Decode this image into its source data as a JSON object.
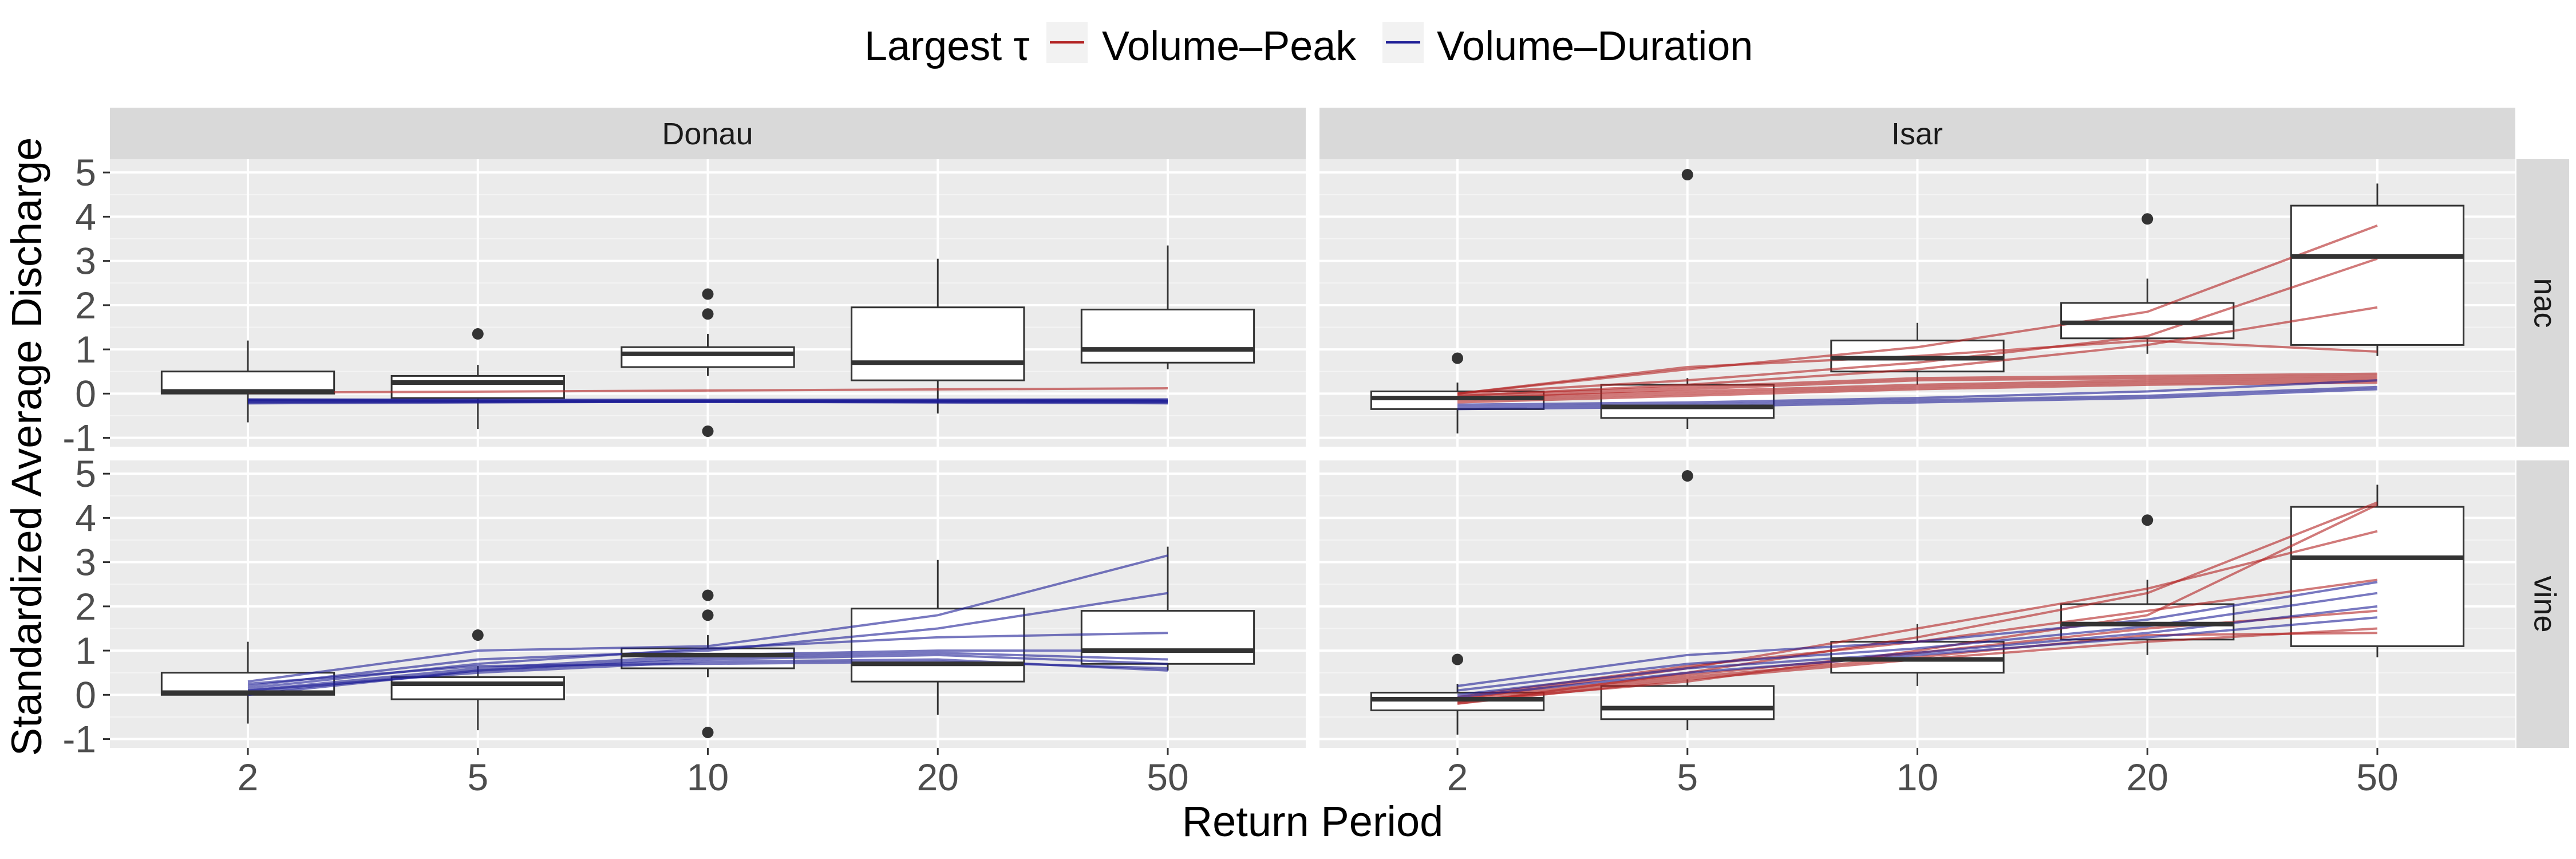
{
  "colors": {
    "panel_bg": "#EBEBEB",
    "grid_major": "#FFFFFF",
    "grid_minor": "#F4F4F4",
    "strip_bg": "#D9D9D9",
    "volume_peak": "#B22222",
    "volume_duration": "#1E1E96"
  },
  "chart_data": {
    "type": "box",
    "xlabel": "Return Period",
    "ylabel": "Standardized Average Discharge",
    "legend": {
      "position": "top",
      "title": "Largest τ",
      "entries": [
        {
          "key": "volume_peak",
          "label": "Volume–Peak"
        },
        {
          "key": "volume_duration",
          "label": "Volume–Duration"
        }
      ]
    },
    "categories": [
      "2",
      "5",
      "10",
      "20",
      "50"
    ],
    "ylim": [
      -1.2,
      5.3
    ],
    "yticks": [
      "-1",
      "0",
      "1",
      "2",
      "3",
      "4",
      "5"
    ],
    "col_facets": [
      "Donau",
      "Isar"
    ],
    "row_facets": [
      "nac",
      "vine"
    ],
    "boxes": {
      "Donau": [
        {
          "q1": 0.0,
          "med": 0.05,
          "q3": 0.5,
          "lo": -0.65,
          "hi": 1.2,
          "out": []
        },
        {
          "q1": -0.1,
          "med": 0.25,
          "q3": 0.4,
          "lo": -0.8,
          "hi": 0.65,
          "out": [
            1.35
          ]
        },
        {
          "q1": 0.6,
          "med": 0.9,
          "q3": 1.05,
          "lo": 0.4,
          "hi": 1.35,
          "out": [
            2.25,
            1.8,
            -0.85
          ]
        },
        {
          "q1": 0.3,
          "med": 0.7,
          "q3": 1.95,
          "lo": -0.45,
          "hi": 3.05,
          "out": []
        },
        {
          "q1": 0.7,
          "med": 1.0,
          "q3": 1.9,
          "lo": 0.55,
          "hi": 3.35,
          "out": []
        }
      ],
      "Isar": [
        {
          "q1": -0.35,
          "med": -0.1,
          "q3": 0.05,
          "lo": -0.9,
          "hi": 0.25,
          "out": [
            0.8
          ]
        },
        {
          "q1": -0.55,
          "med": -0.3,
          "q3": 0.2,
          "lo": -0.8,
          "hi": 0.35,
          "out": [
            4.95
          ]
        },
        {
          "q1": 0.5,
          "med": 0.8,
          "q3": 1.2,
          "lo": 0.2,
          "hi": 1.6,
          "out": []
        },
        {
          "q1": 1.25,
          "med": 1.6,
          "q3": 2.05,
          "lo": 0.9,
          "hi": 2.6,
          "out": [
            3.95
          ]
        },
        {
          "q1": 1.1,
          "med": 3.1,
          "q3": 4.25,
          "lo": 0.85,
          "hi": 4.75,
          "out": []
        }
      ]
    },
    "lines": {
      "Donau|nac": [
        {
          "type": "volume_peak",
          "x": [
            2,
            50
          ],
          "y": [
            0.02,
            0.12
          ]
        },
        {
          "type": "volume_duration",
          "x": [
            2,
            50
          ],
          "y": [
            -0.13,
            -0.16
          ]
        },
        {
          "type": "volume_duration",
          "x": [
            2,
            50
          ],
          "y": [
            -0.15,
            -0.13
          ]
        },
        {
          "type": "volume_duration",
          "x": [
            2,
            50
          ],
          "y": [
            -0.18,
            -0.2
          ]
        },
        {
          "type": "volume_duration",
          "x": [
            2,
            50
          ],
          "y": [
            -0.2,
            -0.17
          ]
        },
        {
          "type": "volume_duration",
          "x": [
            2,
            50
          ],
          "y": [
            -0.14,
            -0.22
          ]
        },
        {
          "type": "volume_duration",
          "x": [
            2,
            50
          ],
          "y": [
            -0.22,
            -0.14
          ]
        },
        {
          "type": "volume_duration",
          "x": [
            2,
            50
          ],
          "y": [
            -0.16,
            -0.18
          ]
        }
      ],
      "Isar|nac": [
        {
          "type": "volume_peak",
          "x": [
            2,
            5,
            10,
            20,
            50
          ],
          "y": [
            0.0,
            0.55,
            1.05,
            1.85,
            3.8
          ]
        },
        {
          "type": "volume_peak",
          "x": [
            2,
            5,
            10,
            20,
            50
          ],
          "y": [
            0.0,
            0.3,
            0.7,
            1.3,
            3.05
          ]
        },
        {
          "type": "volume_peak",
          "x": [
            2,
            5,
            10,
            20,
            50
          ],
          "y": [
            -0.05,
            0.2,
            0.55,
            1.1,
            1.95
          ]
        },
        {
          "type": "volume_peak",
          "x": [
            2,
            5,
            10,
            20,
            50
          ],
          "y": [
            0.0,
            0.6,
            0.85,
            1.2,
            0.95
          ]
        },
        {
          "type": "volume_peak",
          "x": [
            2,
            5,
            10,
            20,
            50
          ],
          "y": [
            -0.05,
            0.15,
            0.35,
            0.4,
            0.45
          ]
        },
        {
          "type": "volume_peak",
          "x": [
            2,
            5,
            10,
            20,
            50
          ],
          "y": [
            -0.1,
            0.1,
            0.3,
            0.35,
            0.4
          ]
        },
        {
          "type": "volume_peak",
          "x": [
            2,
            5,
            10,
            20,
            50
          ],
          "y": [
            -0.1,
            0.05,
            0.2,
            0.3,
            0.35
          ]
        },
        {
          "type": "volume_peak",
          "x": [
            2,
            5,
            10,
            20,
            50
          ],
          "y": [
            -0.15,
            0.0,
            0.15,
            0.25,
            0.3
          ]
        },
        {
          "type": "volume_peak",
          "x": [
            2,
            5,
            10,
            20,
            50
          ],
          "y": [
            -0.2,
            -0.05,
            0.1,
            0.2,
            0.25
          ]
        },
        {
          "type": "volume_duration",
          "x": [
            2,
            5,
            10,
            20,
            50
          ],
          "y": [
            -0.25,
            -0.2,
            -0.1,
            0.05,
            0.3
          ]
        },
        {
          "type": "volume_duration",
          "x": [
            2,
            5,
            10,
            20,
            50
          ],
          "y": [
            -0.3,
            -0.25,
            -0.15,
            -0.05,
            0.15
          ]
        },
        {
          "type": "volume_duration",
          "x": [
            2,
            5,
            10,
            20,
            50
          ],
          "y": [
            -0.35,
            -0.3,
            -0.2,
            -0.1,
            0.1
          ]
        }
      ],
      "Donau|vine": [
        {
          "type": "volume_duration",
          "x": [
            2,
            5,
            10,
            20,
            50
          ],
          "y": [
            0.3,
            1.0,
            1.1,
            1.8,
            3.15
          ]
        },
        {
          "type": "volume_duration",
          "x": [
            2,
            5,
            10,
            20,
            50
          ],
          "y": [
            0.2,
            0.8,
            1.0,
            1.5,
            2.3
          ]
        },
        {
          "type": "volume_duration",
          "x": [
            2,
            5,
            10,
            20,
            50
          ],
          "y": [
            0.15,
            0.7,
            1.05,
            1.3,
            1.4
          ]
        },
        {
          "type": "volume_duration",
          "x": [
            2,
            5,
            10,
            20,
            50
          ],
          "y": [
            0.1,
            0.6,
            0.9,
            1.0,
            1.0
          ]
        },
        {
          "type": "volume_duration",
          "x": [
            2,
            5,
            10,
            20,
            50
          ],
          "y": [
            0.05,
            0.55,
            0.8,
            0.9,
            0.7
          ]
        },
        {
          "type": "volume_duration",
          "x": [
            2,
            5,
            10,
            20,
            50
          ],
          "y": [
            0.1,
            0.5,
            0.75,
            0.8,
            0.55
          ]
        },
        {
          "type": "volume_duration",
          "x": [
            2,
            5,
            10,
            20,
            50
          ],
          "y": [
            0.25,
            0.65,
            0.7,
            0.75,
            0.6
          ]
        },
        {
          "type": "volume_duration",
          "x": [
            2,
            5,
            10,
            20,
            50
          ],
          "y": [
            0.0,
            0.55,
            0.85,
            0.95,
            0.8
          ]
        }
      ],
      "Isar|vine": [
        {
          "type": "volume_peak",
          "x": [
            2,
            5,
            10,
            20,
            50
          ],
          "y": [
            -0.2,
            0.5,
            1.3,
            2.3,
            4.35
          ]
        },
        {
          "type": "volume_peak",
          "x": [
            2,
            5,
            10,
            20,
            50
          ],
          "y": [
            -0.15,
            0.3,
            1.0,
            1.8,
            4.3
          ]
        },
        {
          "type": "volume_peak",
          "x": [
            2,
            5,
            10,
            20,
            50
          ],
          "y": [
            -0.1,
            0.6,
            1.5,
            2.4,
            3.7
          ]
        },
        {
          "type": "volume_peak",
          "x": [
            2,
            5,
            10,
            20,
            50
          ],
          "y": [
            -0.05,
            0.65,
            1.2,
            1.9,
            2.6
          ]
        },
        {
          "type": "volume_peak",
          "x": [
            2,
            5,
            10,
            20,
            50
          ],
          "y": [
            -0.1,
            0.45,
            0.95,
            1.5,
            1.9
          ]
        },
        {
          "type": "volume_peak",
          "x": [
            2,
            5,
            10,
            20,
            50
          ],
          "y": [
            -0.2,
            0.35,
            0.8,
            1.2,
            1.5
          ]
        },
        {
          "type": "volume_peak",
          "x": [
            2,
            5,
            10,
            20,
            50
          ],
          "y": [
            -0.15,
            0.4,
            0.85,
            1.35,
            1.4
          ]
        },
        {
          "type": "volume_duration",
          "x": [
            2,
            5,
            10,
            20,
            50
          ],
          "y": [
            0.2,
            0.9,
            1.2,
            1.7,
            2.55
          ]
        },
        {
          "type": "volume_duration",
          "x": [
            2,
            5,
            10,
            20,
            50
          ],
          "y": [
            0.1,
            0.7,
            1.05,
            1.55,
            2.3
          ]
        },
        {
          "type": "volume_duration",
          "x": [
            2,
            5,
            10,
            20,
            50
          ],
          "y": [
            0.0,
            0.6,
            0.95,
            1.4,
            2.0
          ]
        },
        {
          "type": "volume_duration",
          "x": [
            2,
            5,
            10,
            20,
            50
          ],
          "y": [
            -0.05,
            0.5,
            0.9,
            1.3,
            1.75
          ]
        }
      ]
    }
  }
}
